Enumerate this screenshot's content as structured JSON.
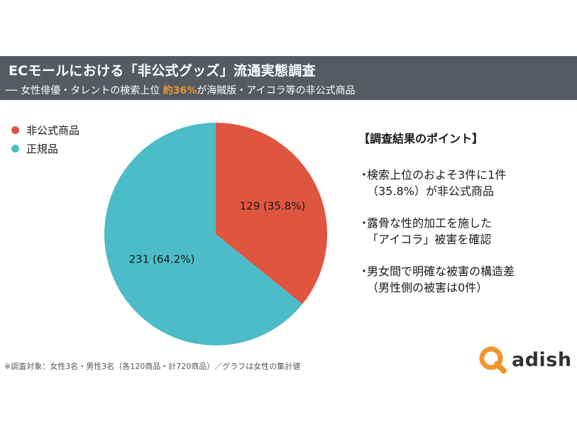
{
  "header": {
    "title": "ECモールにおける「非公式グッズ」流通実態調査",
    "subtitle_before": "── 女性俳優・タレントの検索上位 ",
    "subtitle_highlight": "約36%",
    "subtitle_after": "が海賊版・アイコラ等の非公式商品",
    "highlight_color": "#f0962e"
  },
  "chart_data": {
    "type": "pie",
    "series": [
      {
        "name": "非公式商品",
        "value": 129,
        "label": "129 (35.8%)",
        "color": "#e05540"
      },
      {
        "name": "正規品",
        "value": 231,
        "label": "231 (64.2%)",
        "color": "#4bbcc8"
      }
    ],
    "legend_position": "top-left"
  },
  "points": {
    "heading": "【調査結果のポイント】",
    "bullet_mark": "・",
    "items": [
      {
        "text": "検索上位のおよそ3件に1件\n（35.8%）が非公式商品"
      },
      {
        "text": "露骨な性的加工を施した\n「アイコラ」被害を確認"
      },
      {
        "text": "男女間で明確な被害の構造差\n（男性側の被害は0件）"
      }
    ]
  },
  "footnote": "※調査対象：女性3名・男性3名（各120商品・計720商品）／グラフは女性の集計値",
  "logo": {
    "text": "adish",
    "icon": "adish-logo-icon",
    "color": "#f0962e"
  }
}
